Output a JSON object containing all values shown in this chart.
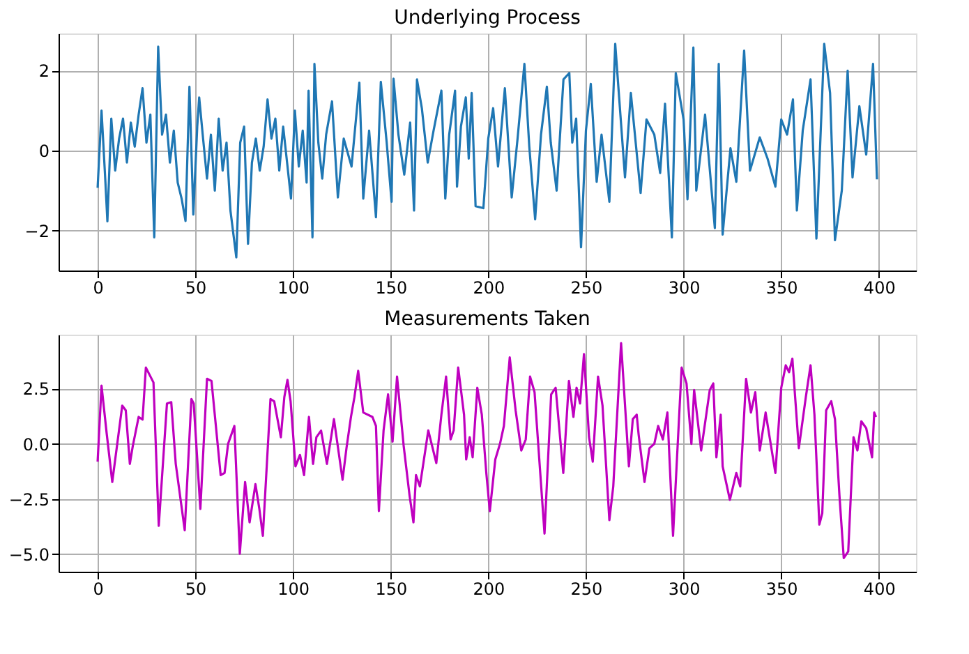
{
  "chart_data": [
    {
      "type": "line",
      "title": "Underlying Process",
      "grid": true,
      "xlim": [
        -20,
        419
      ],
      "ylim": [
        -3.0,
        2.93
      ],
      "xticks": [
        0,
        50,
        100,
        150,
        200,
        250,
        300,
        350,
        400
      ],
      "yticks": [
        {
          "value": -2,
          "label": "−2"
        },
        0,
        2
      ],
      "series": [
        {
          "color": "#1f77b4",
          "x": [
            0,
            2,
            4,
            5,
            7,
            9,
            11,
            13,
            15,
            17,
            19,
            21,
            23,
            25,
            27,
            29,
            31,
            33,
            35,
            37,
            39,
            41,
            43,
            45,
            47,
            49,
            51,
            52,
            54,
            56,
            58,
            60,
            62,
            64,
            66,
            68,
            71,
            73,
            75,
            77,
            79,
            81,
            83,
            85,
            87,
            89,
            91,
            93,
            95,
            97,
            99,
            101,
            103,
            105,
            107,
            108,
            110,
            111,
            113,
            115,
            117,
            120,
            123,
            126,
            130,
            134,
            136,
            139,
            142.5,
            145,
            148,
            150.5,
            151.5,
            154,
            157,
            160,
            162,
            163.5,
            166,
            169,
            172,
            176,
            178,
            180,
            183,
            184,
            186,
            188.5,
            190,
            191.5,
            193.5,
            197.5,
            200,
            202.5,
            205,
            208.5,
            212,
            215,
            218.5,
            221,
            224,
            227,
            230,
            232,
            235,
            238.5,
            241.5,
            243,
            245,
            247.5,
            250,
            252.5,
            255.5,
            258,
            262,
            265,
            267,
            270,
            273,
            278,
            281,
            285,
            288,
            290.5,
            294,
            296,
            300,
            302,
            305,
            306.5,
            311,
            316,
            318,
            320,
            324,
            327,
            331,
            334,
            339,
            343,
            347,
            350,
            353,
            356,
            358,
            361,
            365,
            368,
            372,
            375,
            377.5,
            381,
            384,
            386.5,
            390,
            393.5,
            397,
            399
          ],
          "values": [
            -0.93,
            1.0,
            -0.8,
            -1.77,
            0.8,
            -0.5,
            0.3,
            0.8,
            -0.3,
            0.7,
            0.1,
            0.9,
            1.56,
            0.2,
            0.9,
            -2.17,
            2.6,
            0.4,
            0.9,
            -0.3,
            0.5,
            -0.8,
            -1.2,
            -1.76,
            1.6,
            -1.6,
            0.6,
            1.33,
            0.3,
            -0.7,
            0.4,
            -1.0,
            0.8,
            -0.5,
            0.2,
            -1.5,
            -2.67,
            0.2,
            0.6,
            -2.33,
            -0.3,
            0.3,
            -0.5,
            0.1,
            1.28,
            0.3,
            0.8,
            -0.5,
            0.6,
            -0.3,
            -1.2,
            1.0,
            -0.4,
            0.5,
            -0.8,
            1.5,
            -2.17,
            2.17,
            0.2,
            -0.7,
            0.4,
            1.23,
            -1.17,
            0.3,
            -0.4,
            1.7,
            -1.2,
            0.5,
            -1.67,
            1.72,
            0.2,
            -1.28,
            1.8,
            0.4,
            -0.6,
            0.7,
            -1.5,
            1.78,
            1.06,
            -0.3,
            0.5,
            1.5,
            -1.2,
            0.4,
            1.5,
            -0.9,
            0.6,
            1.33,
            -0.2,
            1.44,
            -1.39,
            -1.44,
            0.3,
            1.06,
            -0.4,
            1.56,
            -1.17,
            0.3,
            2.17,
            0.1,
            -1.72,
            0.4,
            1.6,
            0.2,
            -1.0,
            1.78,
            1.94,
            0.2,
            0.8,
            -2.42,
            0.5,
            1.67,
            -0.78,
            0.4,
            -1.28,
            2.67,
            1.33,
            -0.67,
            1.44,
            -1.06,
            0.78,
            0.4,
            -0.56,
            1.17,
            -2.17,
            1.94,
            0.78,
            -1.22,
            2.58,
            -1.0,
            0.9,
            -1.94,
            2.17,
            -2.1,
            0.06,
            -0.78,
            2.5,
            -0.5,
            0.33,
            -0.2,
            -0.9,
            0.78,
            0.4,
            1.28,
            -1.5,
            0.5,
            1.78,
            -2.2,
            2.67,
            1.44,
            -2.24,
            -1.0,
            2.0,
            -0.67,
            1.11,
            -0.1,
            2.17,
            -0.72
          ]
        }
      ]
    },
    {
      "type": "line",
      "title": "Measurements Taken",
      "grid": true,
      "xlim": [
        -20,
        419
      ],
      "ylim": [
        -5.8,
        4.95
      ],
      "xticks": [
        0,
        50,
        100,
        150,
        200,
        250,
        300,
        350,
        400
      ],
      "yticks": [
        {
          "value": -5,
          "label": "−5.0"
        },
        {
          "value": -2.5,
          "label": "−2.5"
        },
        {
          "value": 0,
          "label": "0.0"
        },
        {
          "value": 2.5,
          "label": "2.5"
        }
      ],
      "series": [
        {
          "color": "#bf00bf",
          "x": [
            0,
            2,
            4.6,
            7.5,
            12.6,
            14.4,
            16.5,
            18,
            21,
            23,
            24.7,
            28.6,
            31.3,
            35.5,
            37.7,
            40,
            44.6,
            48,
            49.2,
            52.6,
            56,
            58.3,
            63,
            65,
            66.8,
            70,
            72.8,
            75.5,
            77.8,
            80.8,
            82.8,
            84.6,
            88.5,
            90.4,
            93.8,
            95.6,
            97.2,
            98.8,
            101.3,
            103.6,
            105.7,
            108.2,
            110.3,
            112,
            114.4,
            117.4,
            121,
            125.4,
            127.4,
            129.7,
            131.5,
            133.4,
            136,
            140.7,
            142.5,
            144,
            146.4,
            148.7,
            151,
            153.3,
            156.7,
            159.7,
            161.7,
            163,
            165,
            169.3,
            173.4,
            176,
            178.4,
            180.7,
            182.3,
            184.6,
            187.6,
            188.7,
            190.5,
            192,
            194.4,
            196.7,
            199,
            200.8,
            203.6,
            206,
            208,
            211,
            214,
            216.9,
            219.2,
            221.4,
            223.7,
            228.8,
            232.2,
            234.5,
            238.4,
            241.3,
            243.6,
            245.2,
            247,
            249,
            251.6,
            253.5,
            256.2,
            258.5,
            262,
            264,
            268,
            272,
            274,
            276,
            277,
            280,
            282.5,
            285,
            287,
            289.4,
            291.7,
            294.6,
            299,
            301.5,
            304,
            305.4,
            309,
            313.4,
            315.2,
            316.8,
            319,
            320,
            323.7,
            327,
            329,
            332,
            334.5,
            336.7,
            339,
            342,
            347,
            350,
            352.3,
            354,
            355.7,
            359,
            362.6,
            365,
            367,
            369.5,
            371,
            373,
            375.6,
            377.5,
            379.8,
            382,
            384.3,
            387,
            389,
            391,
            393.5,
            396.5,
            397.6,
            398.5
          ],
          "values": [
            -0.81,
            2.64,
            0.5,
            -1.73,
            1.73,
            1.52,
            -0.91,
            -0.1,
            1.22,
            1.1,
            3.46,
            2.78,
            -3.72,
            1.83,
            1.89,
            -0.91,
            -3.92,
            2.03,
            1.83,
            -2.95,
            2.95,
            2.85,
            -1.42,
            -1.32,
            0,
            0.81,
            -4.98,
            -1.73,
            -3.56,
            -1.83,
            -2.95,
            -4.17,
            2.03,
            1.93,
            0.3,
            2.13,
            2.9,
            1.93,
            -1.02,
            -0.5,
            -1.42,
            1.22,
            -0.91,
            0.3,
            0.6,
            -0.91,
            1.12,
            -1.63,
            -0.2,
            1.22,
            2.13,
            3.31,
            1.42,
            1.22,
            0.81,
            -3.05,
            0.61,
            2.24,
            0.1,
            3.05,
            -0.1,
            -2.34,
            -3.56,
            -1.42,
            -1.93,
            0.61,
            -0.87,
            1.32,
            3.05,
            0.2,
            0.61,
            3.46,
            1.32,
            -0.71,
            0.3,
            -0.61,
            2.54,
            1.32,
            -1.32,
            -3.05,
            -0.71,
            0,
            0.81,
            3.92,
            1.52,
            -0.3,
            0.2,
            3.05,
            2.34,
            -4.07,
            2.24,
            2.54,
            -1.32,
            2.85,
            1.22,
            2.54,
            1.83,
            4.07,
            0.3,
            -0.81,
            3.05,
            1.73,
            -3.46,
            -1.93,
            4.57,
            -1.02,
            1.12,
            1.32,
            0.41,
            -1.73,
            -0.2,
            0,
            0.81,
            0.2,
            1.42,
            -4.17,
            3.46,
            2.74,
            0,
            2.44,
            -0.3,
            2.44,
            2.74,
            -0.61,
            1.32,
            -1.02,
            -2.54,
            -1.32,
            -1.93,
            2.95,
            1.42,
            2.34,
            -0.3,
            1.42,
            -1.32,
            2.54,
            3.56,
            3.25,
            3.86,
            -0.2,
            2.13,
            3.56,
            1.32,
            -3.66,
            -3.15,
            1.52,
            1.93,
            1.12,
            -2.34,
            -5.18,
            -4.88,
            0.3,
            -0.3,
            1.02,
            0.71,
            -0.61,
            1.42,
            1.22
          ]
        }
      ]
    }
  ]
}
